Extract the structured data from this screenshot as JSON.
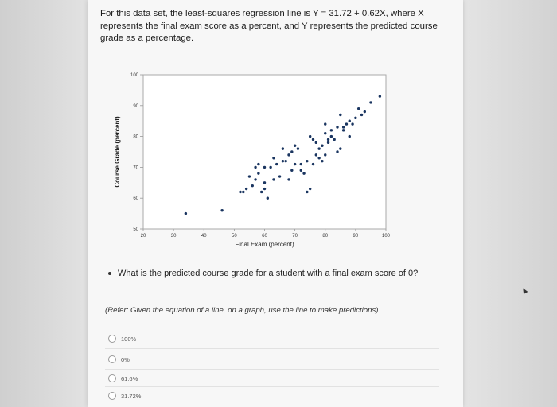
{
  "question": {
    "text": "For this data set, the least-squares regression line is Y = 31.72 + 0.62X, where X represents the final exam score as a percent, and Y represents the predicted course grade as a percentage."
  },
  "chart_data": {
    "type": "scatter",
    "xlabel": "Final Exam (percent)",
    "ylabel": "Course Grade (percent)",
    "xlim": [
      20,
      100
    ],
    "ylim": [
      50,
      100
    ],
    "xticks": [
      20,
      30,
      40,
      50,
      60,
      70,
      80,
      90,
      100
    ],
    "yticks": [
      50,
      60,
      70,
      80,
      90,
      100
    ],
    "grid": false,
    "x": [
      34,
      46,
      52,
      53,
      54,
      55,
      56,
      57,
      57,
      58,
      59,
      60,
      60,
      61,
      62,
      63,
      64,
      65,
      66,
      67,
      68,
      68,
      69,
      70,
      71,
      72,
      73,
      74,
      75,
      76,
      77,
      78,
      79,
      80,
      80,
      81,
      82,
      83,
      84,
      85,
      86,
      87,
      88,
      89,
      90,
      91,
      92,
      93,
      95,
      98,
      72,
      75,
      70,
      66,
      58,
      60,
      63,
      69,
      74,
      77,
      79,
      81,
      82,
      84,
      86,
      88,
      85,
      80,
      78,
      76
    ],
    "y": [
      55,
      56,
      62,
      62,
      63,
      67,
      64,
      66,
      70,
      71,
      62,
      65,
      70,
      60,
      70,
      73,
      71,
      67,
      76,
      72,
      66,
      74,
      75,
      77,
      76,
      71,
      68,
      62,
      63,
      79,
      78,
      76,
      72,
      74,
      81,
      78,
      82,
      79,
      75,
      76,
      83,
      84,
      85,
      84,
      86,
      89,
      87,
      88,
      91,
      93,
      69,
      80,
      71,
      72,
      68,
      63,
      66,
      69,
      72,
      74,
      77,
      79,
      80,
      83,
      82,
      80,
      87,
      84,
      73,
      71
    ]
  },
  "sub_question": {
    "text": "What is the predicted course grade for a student with a final exam score of 0?"
  },
  "hint": {
    "text": "(Refer: Given the equation of a line, on a graph, use the line to make predictions)"
  },
  "options": [
    {
      "label": "100%"
    },
    {
      "label": "0%"
    },
    {
      "label": "61.6%"
    },
    {
      "label": "31.72%"
    }
  ]
}
